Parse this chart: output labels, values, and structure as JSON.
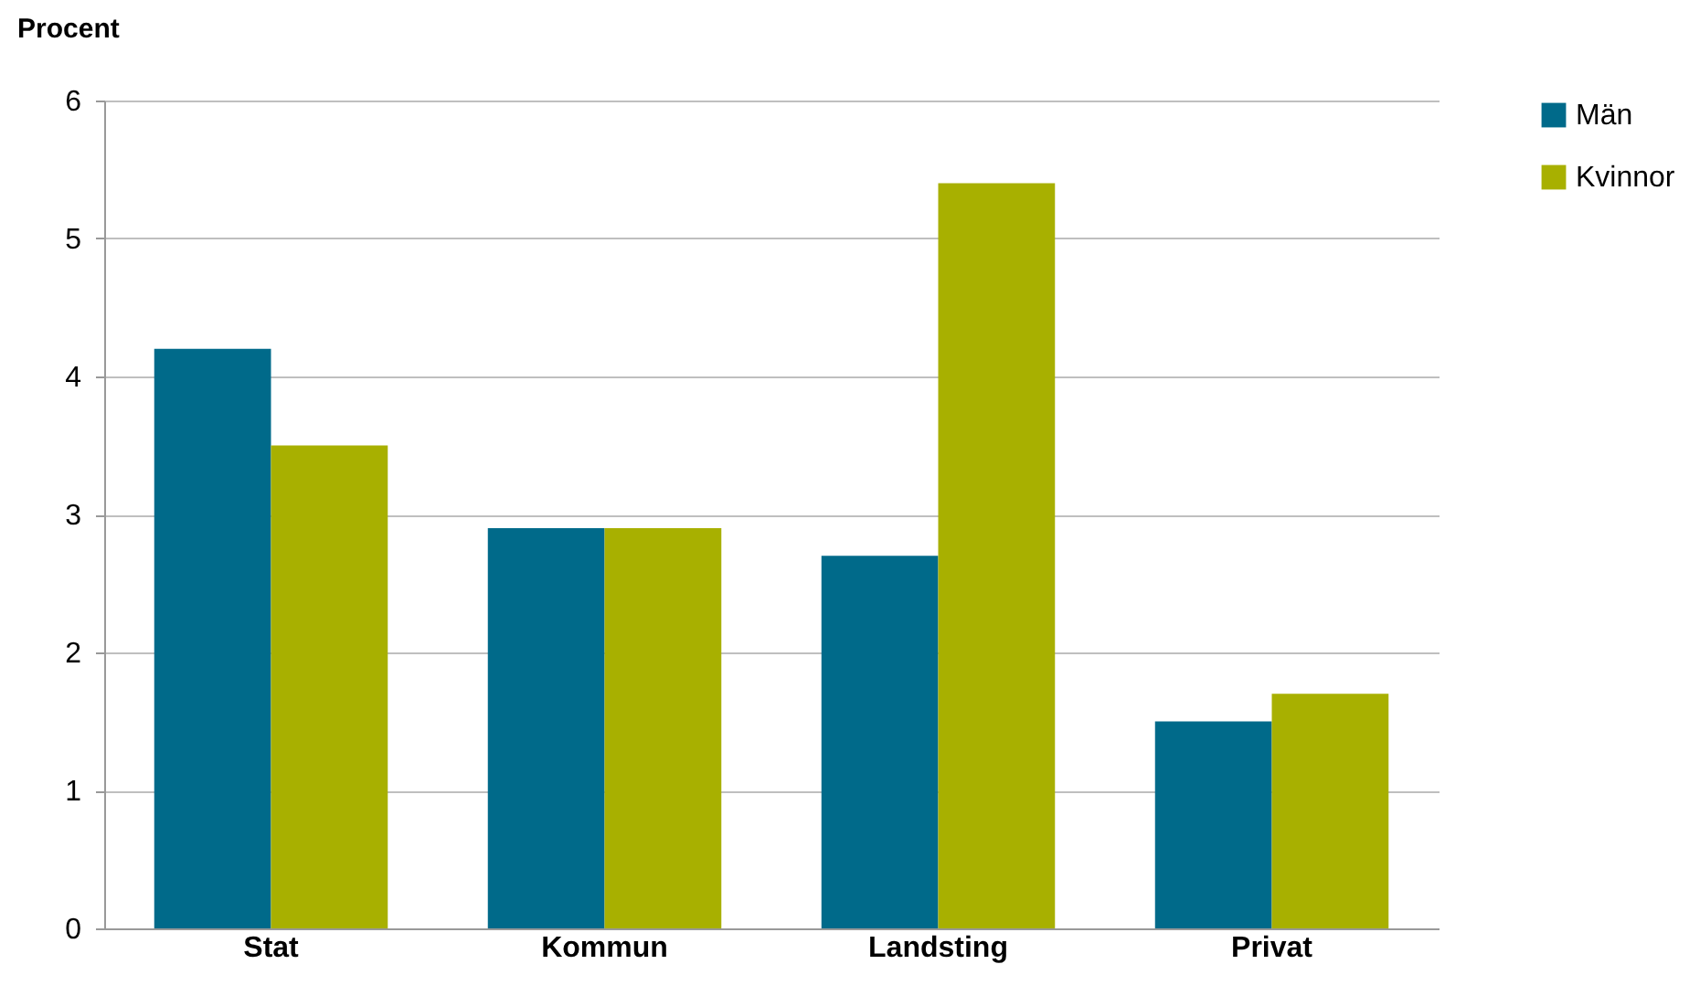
{
  "chart_data": {
    "type": "bar",
    "ylabel": "Procent",
    "categories": [
      "Stat",
      "Kommun",
      "Landsting",
      "Privat"
    ],
    "series": [
      {
        "name": "Män",
        "color": "#006a8a",
        "values": [
          4.2,
          2.9,
          2.7,
          1.5
        ]
      },
      {
        "name": "Kvinnor",
        "color": "#a8b000",
        "values": [
          3.5,
          2.9,
          5.4,
          1.7
        ]
      }
    ],
    "ylim": [
      0,
      6
    ],
    "yticks": [
      0,
      1,
      2,
      3,
      4,
      5,
      6
    ],
    "grid": "y",
    "legend": "right"
  }
}
